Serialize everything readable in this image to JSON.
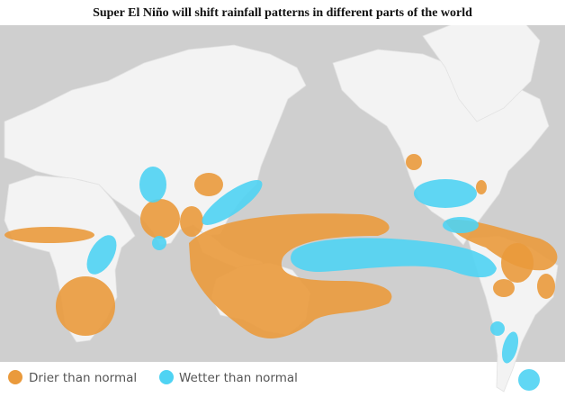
{
  "title": "Super El Niño will shift rainfall patterns in different parts of the world",
  "legend": [
    {
      "label": "Drier than normal",
      "color": "#ea9a3c"
    },
    {
      "label": "Wetter than normal",
      "color": "#4fd3f3"
    }
  ]
}
